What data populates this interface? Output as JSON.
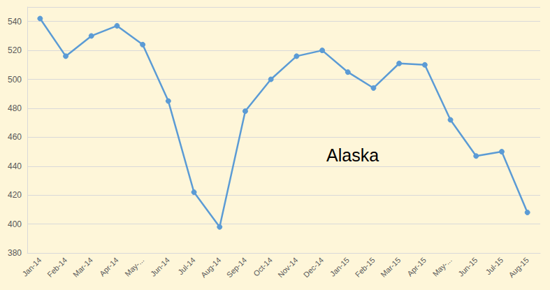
{
  "chart_data": {
    "type": "line",
    "title": "Alaska",
    "categories": [
      "Jan-14",
      "Feb-14",
      "Mar-14",
      "Apr-14",
      "May-...",
      "Jun-14",
      "Jul-14",
      "Aug-14",
      "Sep-14",
      "Oct-14",
      "Nov-14",
      "Dec-14",
      "Jan-15",
      "Feb-15",
      "Mar-15",
      "Apr-15",
      "May-...",
      "Jun-15",
      "Jul-15",
      "Aug-15"
    ],
    "values": [
      542,
      516,
      530,
      537,
      524,
      485,
      422,
      398,
      478,
      500,
      516,
      520,
      505,
      494,
      511,
      510,
      472,
      447,
      450,
      408
    ],
    "color": "#5b9bd5",
    "marker": "circle",
    "ylim": [
      380,
      550
    ],
    "yticks": [
      380,
      400,
      420,
      440,
      460,
      480,
      500,
      520,
      540
    ],
    "grid": true
  }
}
